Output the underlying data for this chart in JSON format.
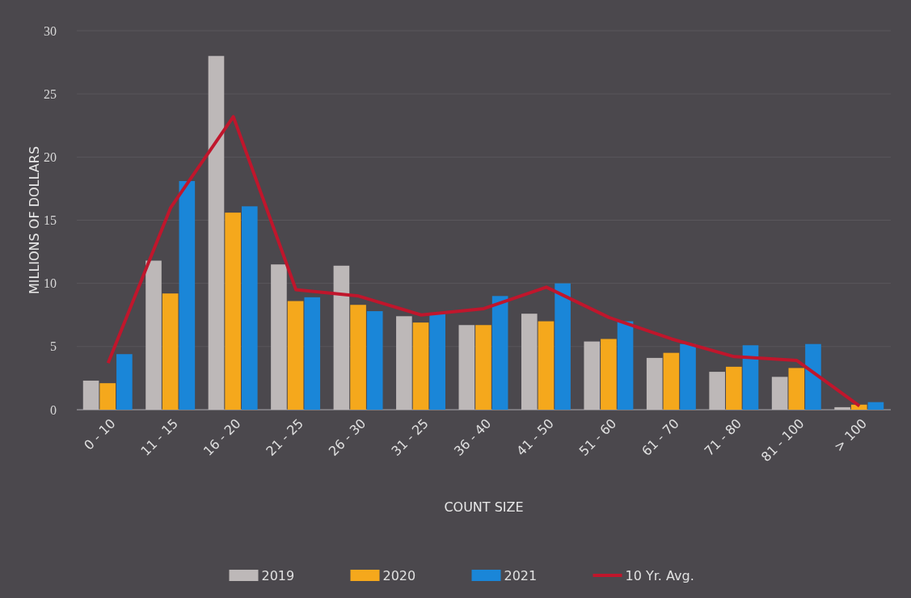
{
  "chart_data": {
    "type": "bar",
    "xlabel": "COUNT SIZE",
    "ylabel": "MILLIONS OF DOLLARS",
    "categories": [
      "0 - 10",
      "11 - 15",
      "16 - 20",
      "21 - 25",
      "26 - 30",
      "31 - 25",
      "36 - 40",
      "41 - 50",
      "51 - 60",
      "61 - 70",
      "71 - 80",
      "81 - 100",
      "> 100"
    ],
    "series": [
      {
        "name": "2019",
        "color": "#bdb8b8",
        "values": [
          2.3,
          11.8,
          28,
          11.5,
          11.4,
          7.4,
          6.7,
          7.6,
          5.4,
          4.1,
          3.0,
          2.6,
          0.2
        ]
      },
      {
        "name": "2020",
        "color": "#f5a81c",
        "values": [
          2.1,
          9.2,
          15.6,
          8.6,
          8.3,
          6.9,
          6.7,
          7.0,
          5.6,
          4.5,
          3.4,
          3.3,
          0.4
        ]
      },
      {
        "name": "2021",
        "color": "#1a86d8",
        "values": [
          4.4,
          18.1,
          16.1,
          8.9,
          7.8,
          7.6,
          9.0,
          10.0,
          7.0,
          5.2,
          5.1,
          5.2,
          0.6
        ]
      },
      {
        "name": "10 Yr. Avg.",
        "type": "line",
        "color": "#c0162c",
        "values": [
          3.7,
          16.0,
          23.2,
          9.5,
          9.0,
          7.5,
          8.0,
          9.7,
          7.3,
          5.6,
          4.2,
          3.9,
          0.3
        ]
      }
    ],
    "ylim": [
      0,
      30
    ],
    "yticks": [
      0,
      5,
      10,
      15,
      20,
      25,
      30
    ],
    "grid": "y",
    "legend": "bottom",
    "marker": "none"
  }
}
